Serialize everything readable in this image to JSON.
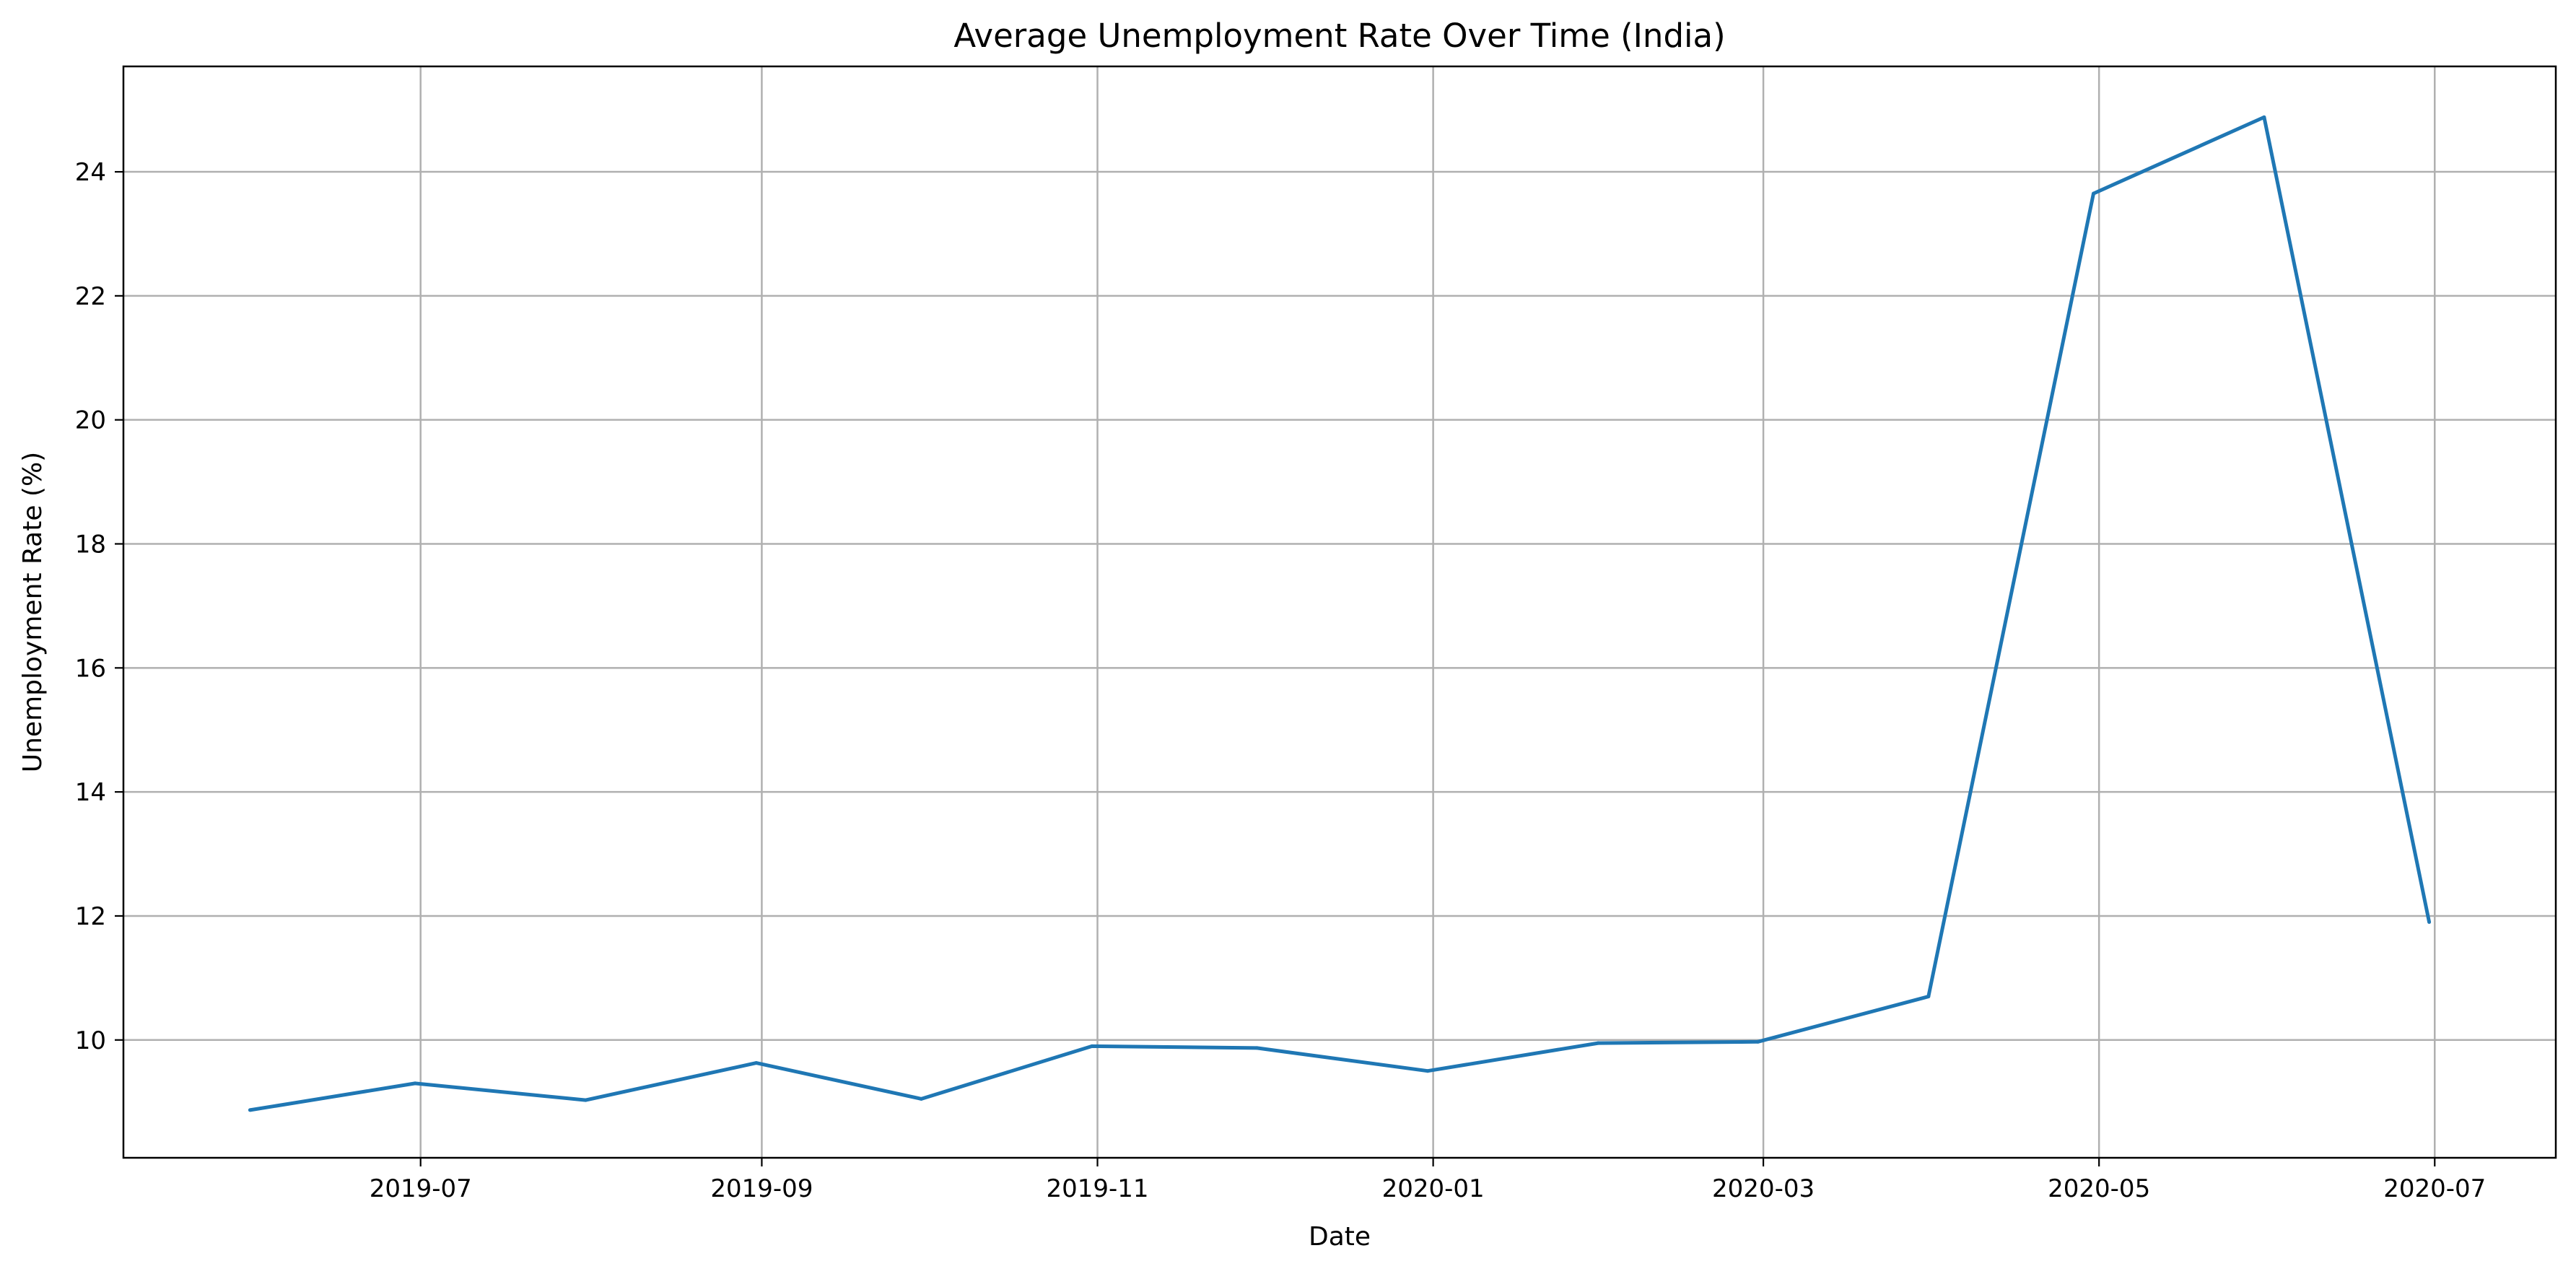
{
  "chart_data": {
    "type": "line",
    "title": "Average Unemployment Rate Over Time (India)",
    "xlabel": "Date",
    "ylabel": "Unemployment Rate (%)",
    "x": [
      "2019-05-31",
      "2019-06-30",
      "2019-07-31",
      "2019-08-31",
      "2019-09-30",
      "2019-10-31",
      "2019-11-30",
      "2019-12-31",
      "2020-01-31",
      "2020-02-29",
      "2020-03-31",
      "2020-04-30",
      "2020-05-31",
      "2020-06-30"
    ],
    "series": [
      {
        "values": [
          8.87,
          9.3,
          9.03,
          9.63,
          9.05,
          9.9,
          9.87,
          9.5,
          9.95,
          9.97,
          10.7,
          23.65,
          24.88,
          11.9
        ]
      }
    ],
    "xlim": [
      "2019-05-08",
      "2020-07-23"
    ],
    "ylim": [
      8.1,
      25.7
    ],
    "x_ticks": [
      "2019-07",
      "2019-09",
      "2019-11",
      "2020-01",
      "2020-03",
      "2020-05",
      "2020-07"
    ],
    "y_ticks": [
      "10",
      "12",
      "14",
      "16",
      "18",
      "20",
      "22",
      "24"
    ],
    "grid": true,
    "colors": {
      "series": "#1f77b4",
      "grid": "#b0b0b0",
      "frame": "#000000"
    }
  }
}
